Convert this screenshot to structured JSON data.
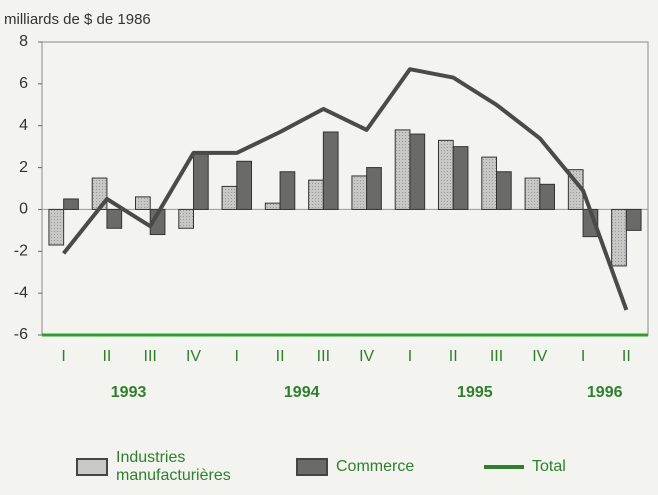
{
  "chart_data": {
    "type": "bar-line",
    "title": "milliards de $ de 1986",
    "categories": [
      "I",
      "II",
      "III",
      "IV",
      "I",
      "II",
      "III",
      "IV",
      "I",
      "II",
      "III",
      "IV",
      "I",
      "II"
    ],
    "year_labels": [
      "1993",
      "1994",
      "1995",
      "1996"
    ],
    "series": [
      {
        "name": "Industries manufacturières",
        "type": "bar",
        "color": "#c8c8c4",
        "values": [
          -1.7,
          1.5,
          0.6,
          -0.9,
          1.1,
          0.3,
          1.4,
          1.6,
          3.8,
          3.3,
          2.5,
          1.5,
          1.9,
          -2.7
        ]
      },
      {
        "name": "Commerce",
        "type": "bar",
        "color": "#6a6a66",
        "values": [
          0.5,
          -0.9,
          -1.2,
          2.7,
          2.3,
          1.8,
          3.7,
          2.0,
          3.6,
          3.0,
          1.8,
          1.2,
          -1.3,
          -1.0
        ]
      },
      {
        "name": "Total",
        "type": "line",
        "color": "#4a4a48",
        "values": [
          -2.1,
          0.5,
          -0.8,
          2.7,
          2.7,
          3.7,
          4.8,
          3.8,
          6.7,
          6.3,
          5.0,
          3.4,
          0.9,
          -4.8
        ]
      }
    ],
    "ylim": [
      -6,
      8
    ],
    "yticks": [
      -6,
      -4,
      -2,
      0,
      2,
      4,
      6,
      8
    ]
  }
}
